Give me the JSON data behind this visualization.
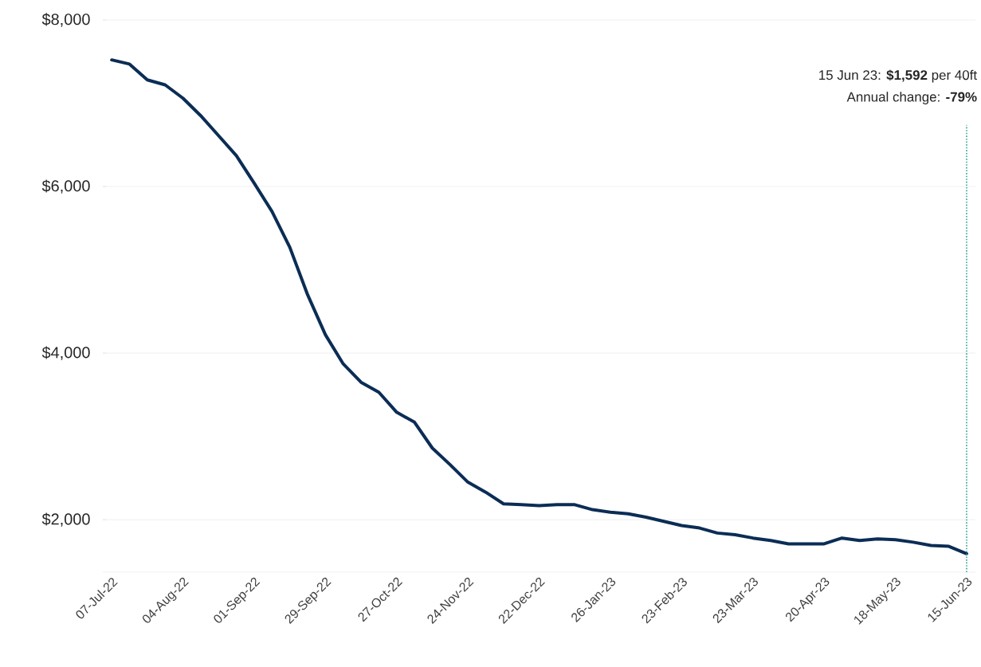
{
  "chart_data": {
    "type": "line",
    "categories": [
      "07-Jul-22",
      null,
      null,
      null,
      "04-Aug-22",
      null,
      null,
      null,
      "01-Sep-22",
      null,
      null,
      null,
      "29-Sep-22",
      null,
      null,
      null,
      "27-Oct-22",
      null,
      null,
      null,
      "24-Nov-22",
      null,
      null,
      null,
      "22-Dec-22",
      null,
      null,
      null,
      "26-Jan-23",
      null,
      null,
      null,
      "23-Feb-23",
      null,
      null,
      null,
      "23-Mar-23",
      null,
      null,
      null,
      "20-Apr-23",
      null,
      null,
      null,
      "18-May-23",
      null,
      null,
      null,
      "15-Jun-23"
    ],
    "series": [
      {
        "color": "#0b2d55",
        "values": [
          7520,
          7470,
          7280,
          7220,
          7060,
          6850,
          6610,
          6370,
          6040,
          5700,
          5270,
          4700,
          4220,
          3870,
          3650,
          3530,
          3290,
          3170,
          2860,
          2660,
          2450,
          2330,
          2190,
          2180,
          2170,
          2180,
          2180,
          2120,
          2090,
          2070,
          2030,
          1980,
          1930,
          1900,
          1840,
          1820,
          1780,
          1750,
          1710,
          1710,
          1710,
          1780,
          1750,
          1770,
          1760,
          1730,
          1690,
          1680,
          1592
        ]
      }
    ],
    "ylim": [
      1370,
      8000
    ],
    "yticks": [
      {
        "value": 2000,
        "label": "$2,000"
      },
      {
        "value": 4000,
        "label": "$4,000"
      },
      {
        "value": 6000,
        "label": "$6,000"
      },
      {
        "value": 8000,
        "label": "$8,000"
      }
    ],
    "grid": "y",
    "marker": "none",
    "line_style": "solid",
    "ref_lines": [
      {
        "axis": "x",
        "value": "15-Jun-23",
        "color": "#2aa59a",
        "line_style": "dotted"
      }
    ],
    "annotations": [
      "15 Jun 23: **$1,592** per 40ft",
      "Annual change: **-79%**"
    ]
  }
}
